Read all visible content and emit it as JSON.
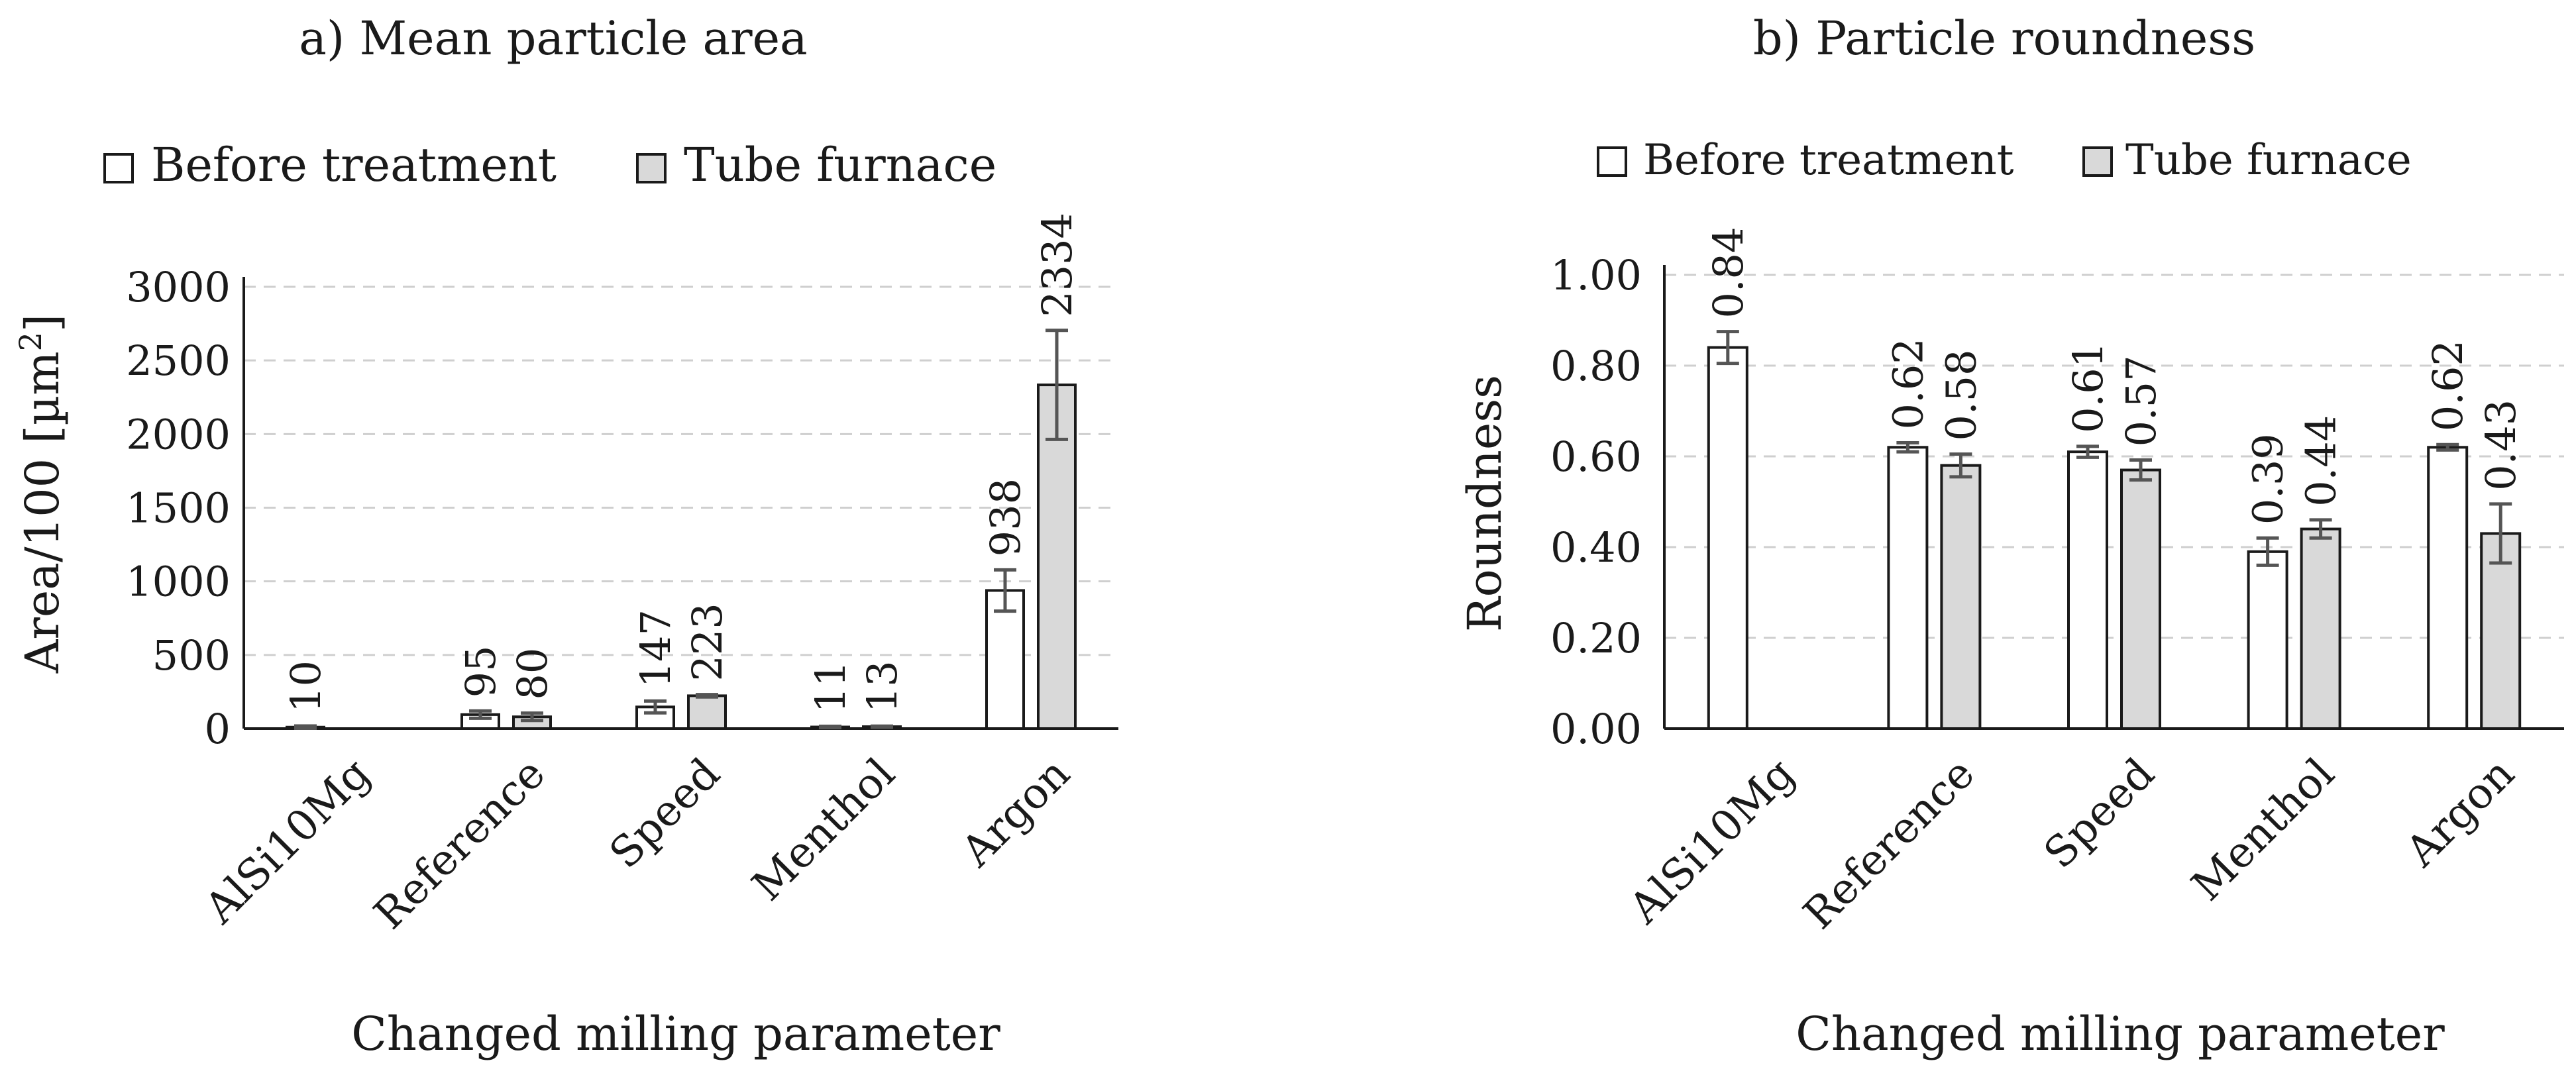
{
  "chart_data": [
    {
      "type": "bar",
      "panel_title": "a) Mean particle area",
      "categories": [
        "AlSi10Mg",
        "Reference",
        "Speed",
        "Menthol",
        "Argon"
      ],
      "series": [
        {
          "name": "Before treatment",
          "color": "#ffffff",
          "values": [
            10,
            95,
            147,
            11,
            938
          ],
          "errors": [
            8,
            25,
            40,
            5,
            140
          ],
          "labels": [
            "10",
            "95",
            "147",
            "11",
            "938"
          ]
        },
        {
          "name": "Tube furnace",
          "color": "#d9d9d9",
          "values": [
            null,
            80,
            223,
            13,
            2334
          ],
          "errors": [
            null,
            25,
            8,
            4,
            370
          ],
          "labels": [
            null,
            "80",
            "223",
            "13",
            "2334"
          ]
        }
      ],
      "yticks": [
        "0",
        "500",
        "1000",
        "1500",
        "2000",
        "2500",
        "3000"
      ],
      "ylim": [
        0,
        3000
      ],
      "grid": true,
      "legend": "top",
      "ylabel": "Area/100 [µm",
      "ylabel_sup": "2",
      "ylabel_end": "]",
      "xlabel": "Changed milling parameter"
    },
    {
      "type": "bar",
      "panel_title": "b) Particle roundness",
      "categories": [
        "AlSi10Mg",
        "Reference",
        "Speed",
        "Menthol",
        "Argon"
      ],
      "series": [
        {
          "name": "Before treatment",
          "color": "#ffffff",
          "values": [
            0.84,
            0.62,
            0.61,
            0.39,
            0.62
          ],
          "errors": [
            0.035,
            0.01,
            0.012,
            0.03,
            0.006
          ],
          "labels": [
            "0.84",
            "0.62",
            "0.61",
            "0.39",
            "0.62"
          ]
        },
        {
          "name": "Tube furnace",
          "color": "#d9d9d9",
          "values": [
            null,
            0.58,
            0.57,
            0.44,
            0.43
          ],
          "errors": [
            null,
            0.025,
            0.022,
            0.02,
            0.065
          ],
          "labels": [
            null,
            "0.58",
            "0.57",
            "0.44",
            "0.43"
          ]
        }
      ],
      "yticks": [
        "0.00",
        "0.20",
        "0.40",
        "0.60",
        "0.80",
        "1.00"
      ],
      "ylim": [
        0,
        1
      ],
      "grid": true,
      "legend": "top",
      "ylabel": "Roundness",
      "xlabel": "Changed milling parameter"
    }
  ]
}
